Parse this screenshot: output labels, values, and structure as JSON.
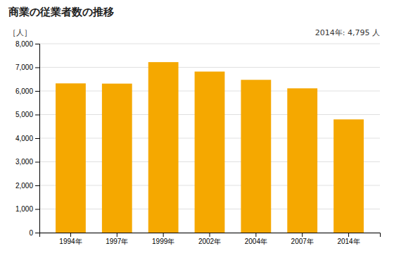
{
  "chart_data": {
    "type": "bar",
    "title": "商業の従業者数の推移",
    "ylabel": "［人］",
    "annotation": "2014年: 4,795 人",
    "categories": [
      "1994年",
      "1997年",
      "1999年",
      "2002年",
      "2004年",
      "2007年",
      "2014年"
    ],
    "values": [
      6320,
      6310,
      7220,
      6820,
      6470,
      6110,
      4795
    ],
    "color": "#F5A800",
    "ylim": [
      0,
      8000
    ],
    "yticks": [
      0,
      {
        "value": 1000,
        "label": "1,000"
      },
      {
        "value": 2000,
        "label": "2,000"
      },
      {
        "value": 3000,
        "label": "3,000"
      },
      {
        "value": 4000,
        "label": "4,000"
      },
      {
        "value": 5000,
        "label": "5,000"
      },
      {
        "value": 6000,
        "label": "6,000"
      },
      {
        "value": 7000,
        "label": "7,000"
      },
      {
        "value": 8000,
        "label": "8,000"
      }
    ],
    "grid": true
  }
}
